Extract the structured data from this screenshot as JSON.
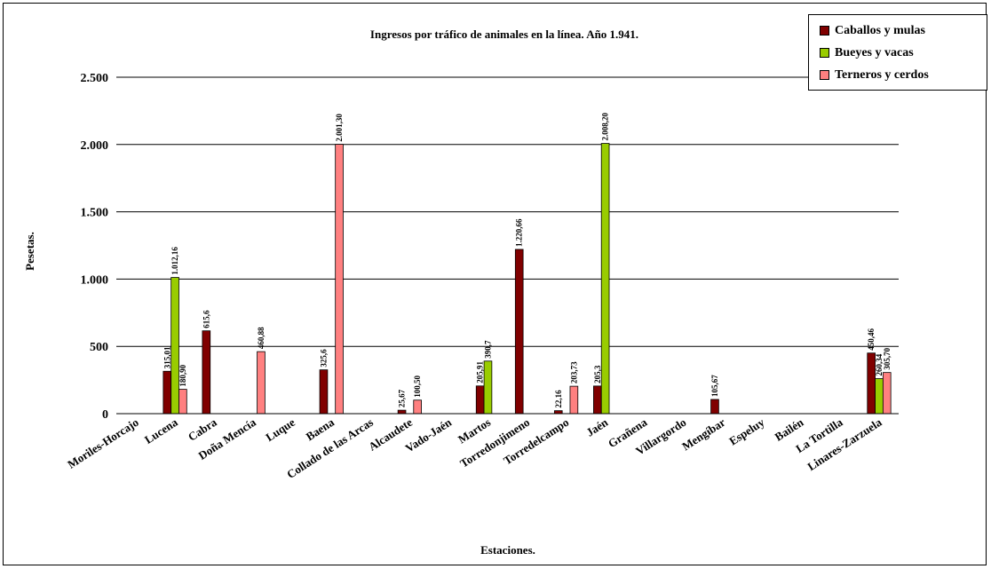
{
  "chart_data": {
    "type": "bar",
    "title": "Ingresos por tráfico de animales en la línea. Año 1.941.",
    "xlabel": "Estaciones.",
    "ylabel": "Pesetas.",
    "ylim": [
      0,
      2500
    ],
    "yticks": [
      {
        "value": 0,
        "label": "0"
      },
      {
        "value": 500,
        "label": "500"
      },
      {
        "value": 1000,
        "label": "1.000"
      },
      {
        "value": 1500,
        "label": "1.500"
      },
      {
        "value": 2000,
        "label": "2.000"
      },
      {
        "value": 2500,
        "label": "2.500"
      }
    ],
    "grid": true,
    "legend_position": "top-right",
    "categories": [
      "Moriles-Horcajo",
      "Lucena",
      "Cabra",
      "Doña Mencía",
      "Luque",
      "Baena",
      "Collado de las Arcas",
      "Alcaudete",
      "Vado-Jaén",
      "Martos",
      "Torredonjimeno",
      "Torredelcampo",
      "Jaén",
      "Grañena",
      "Villargordo",
      "Mengíbar",
      "Espeluy",
      "Bailén",
      "La Tortilla",
      "Linares-Zarzuela"
    ],
    "series": [
      {
        "name": "Caballos y mulas",
        "color": "#800000",
        "values": [
          null,
          315.01,
          615.6,
          null,
          null,
          325.6,
          null,
          25.67,
          null,
          205.91,
          1220.66,
          22.16,
          205.3,
          null,
          null,
          105.67,
          null,
          null,
          null,
          450.46
        ],
        "labels": [
          null,
          "315,01",
          "615,6",
          null,
          null,
          "325,6",
          null,
          "25,67",
          null,
          "205,91",
          "1.220,66",
          "22,16",
          "205,3",
          null,
          null,
          "105,67",
          null,
          null,
          null,
          "450,46"
        ]
      },
      {
        "name": "Bueyes y vacas",
        "color": "#99CC00",
        "values": [
          null,
          1012.16,
          null,
          null,
          null,
          null,
          null,
          null,
          null,
          390.7,
          null,
          null,
          2008.2,
          null,
          null,
          null,
          null,
          null,
          null,
          260.34
        ],
        "labels": [
          null,
          "1.012,16",
          null,
          null,
          null,
          null,
          null,
          null,
          null,
          "390,7",
          null,
          null,
          "2.008,20",
          null,
          null,
          null,
          null,
          null,
          null,
          "260,34"
        ]
      },
      {
        "name": "Terneros y cerdos",
        "color": "#FF8080",
        "values": [
          null,
          180.9,
          null,
          460.88,
          null,
          2001.3,
          null,
          100.5,
          null,
          null,
          null,
          203.73,
          null,
          null,
          null,
          null,
          null,
          null,
          null,
          305.7
        ],
        "labels": [
          null,
          "180,90",
          null,
          "460,88",
          null,
          "2.001,30",
          null,
          "100,50",
          null,
          null,
          null,
          "203,73",
          null,
          null,
          null,
          null,
          null,
          null,
          null,
          "305,70"
        ]
      }
    ]
  }
}
